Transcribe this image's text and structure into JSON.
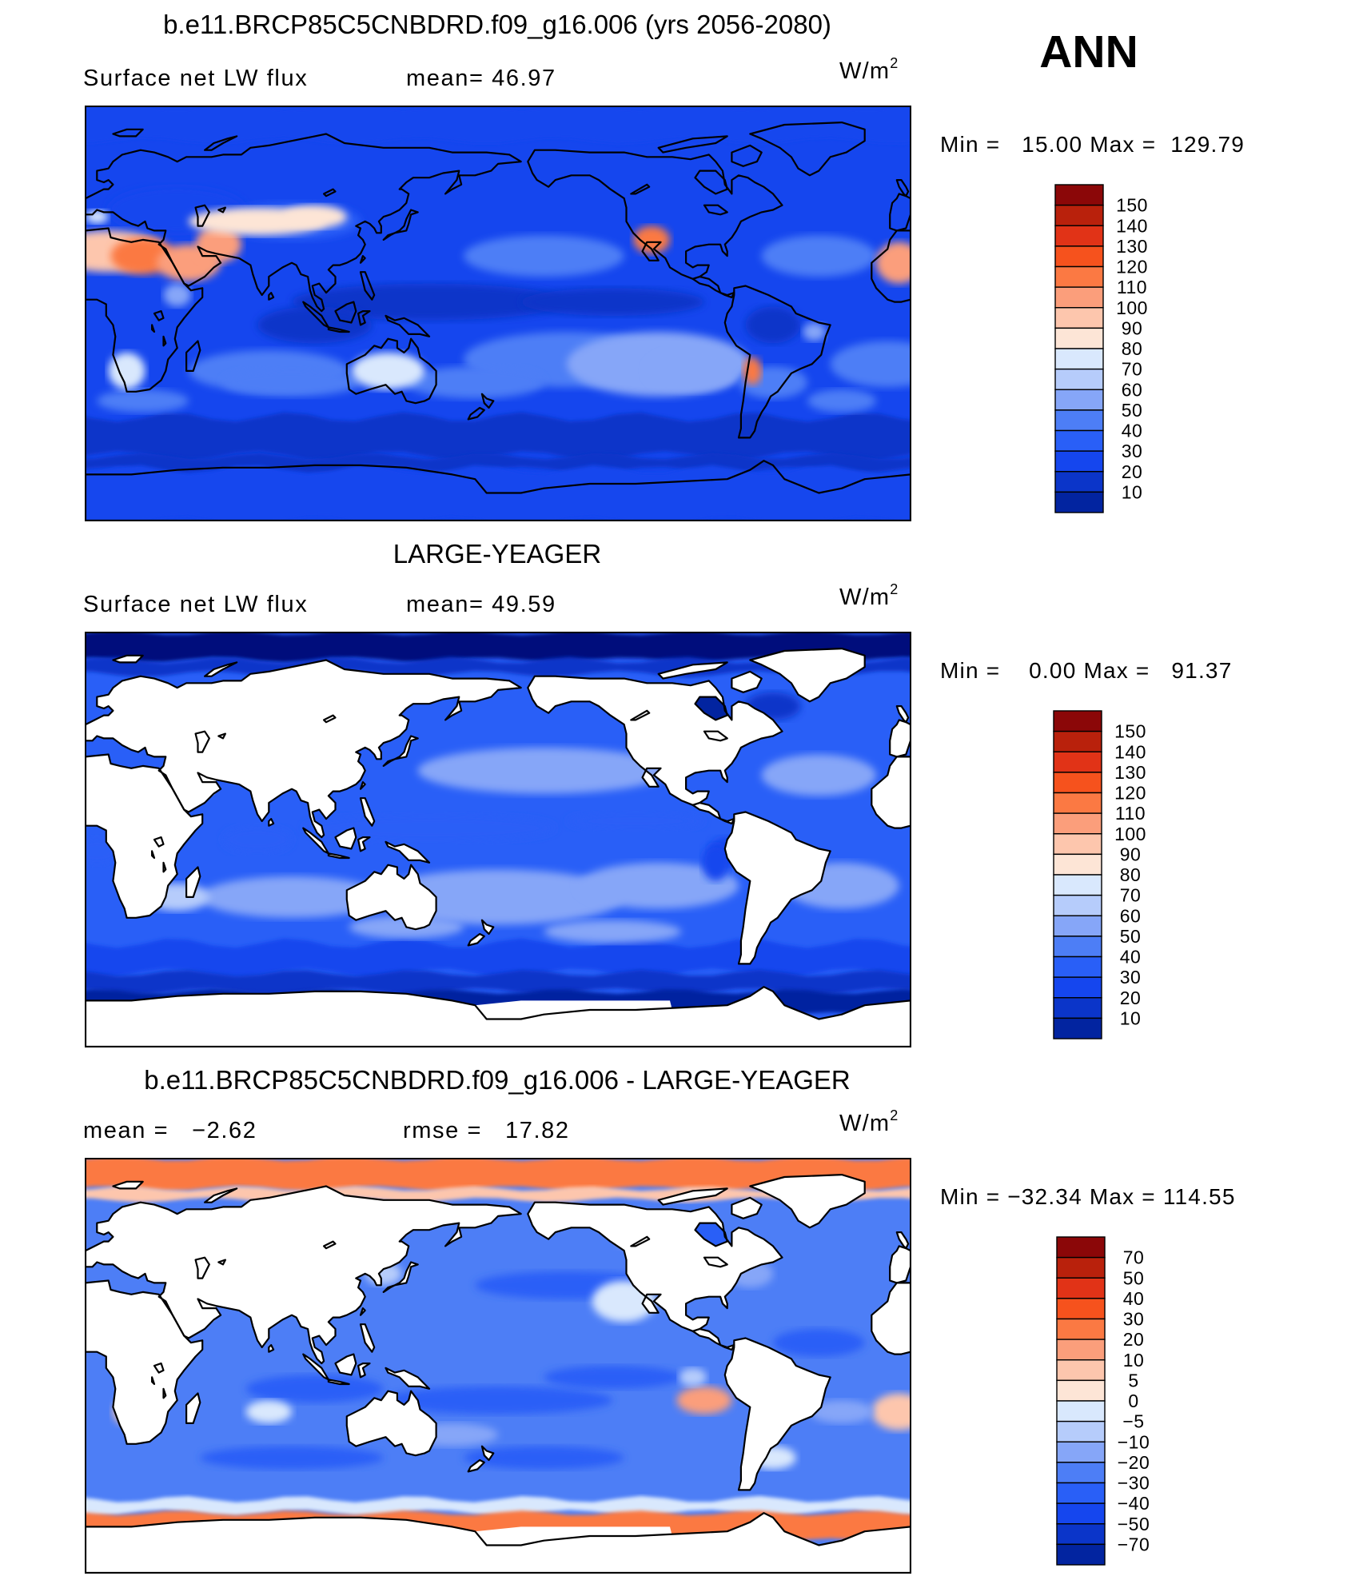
{
  "season": "ANN",
  "colors": {
    "cool": [
      "#010a7b",
      "#0224a0",
      "#0b35c9",
      "#1546ee",
      "#295ff7",
      "#4d7ef6",
      "#86a6f8",
      "#b6ccfb",
      "#d9e8fd"
    ],
    "warm": [
      "#fde5d6",
      "#fdc6ad",
      "#fb9e7b",
      "#fb7943",
      "#f6521d",
      "#e13317",
      "#b9210c",
      "#8b0708"
    ],
    "diff_cool": [
      "#010a7b",
      "#0224a0",
      "#0b35c9",
      "#1546ee",
      "#295ff7",
      "#4d7ef6",
      "#86a6f8",
      "#b6ccfb",
      "#d9e8fd"
    ],
    "diff_warm": [
      "#fde5d6",
      "#fdc6ad",
      "#fb9e7b",
      "#fb7943",
      "#f6521d",
      "#e13317",
      "#b9210c",
      "#8b0708"
    ],
    "land": "#ffffff",
    "coastline": "#000000"
  },
  "panels": [
    {
      "title": "b.e11.BRCP85C5CNBDRD.f09_g16.006 (yrs 2056-2080)",
      "left_label": "Surface net LW flux",
      "center_label": "mean=  46.97",
      "units": "W/m",
      "units_exp": "2",
      "minmax": "Min =   15.00 Max =  129.79",
      "levels": [
        "150",
        "140",
        "130",
        "120",
        "110",
        "100",
        "90",
        "80",
        "70",
        "60",
        "50",
        "40",
        "30",
        "20",
        "10"
      ],
      "field": "model"
    },
    {
      "title": "LARGE-YEAGER",
      "left_label": "Surface net LW flux",
      "center_label": "mean=  49.59",
      "units": "W/m",
      "units_exp": "2",
      "minmax": "Min =    0.00 Max =   91.37",
      "levels": [
        "150",
        "140",
        "130",
        "120",
        "110",
        "100",
        "90",
        "80",
        "70",
        "60",
        "50",
        "40",
        "30",
        "20",
        "10"
      ],
      "field": "obs"
    },
    {
      "title": "b.e11.BRCP85C5CNBDRD.f09_g16.006 - LARGE-YEAGER",
      "left_label": "mean =   −2.62",
      "center_label": "rmse =   17.82",
      "units": "W/m",
      "units_exp": "2",
      "minmax": "Min = −32.34 Max = 114.55",
      "levels": [
        "70",
        "50",
        "40",
        "30",
        "20",
        "10",
        "5",
        "0",
        "−5",
        "−10",
        "−20",
        "−30",
        "−40",
        "−50",
        "−70"
      ],
      "field": "diff"
    }
  ],
  "chart_data": [
    {
      "type": "heatmap",
      "title": "b.e11.BRCP85C5CNBDRD.f09_g16.006 (yrs 2056-2080)",
      "variable": "Surface net LW flux",
      "units": "W/m2",
      "season": "ANN",
      "mean": 46.97,
      "min": 15.0,
      "max": 129.79,
      "contour_levels": [
        10,
        20,
        30,
        40,
        50,
        60,
        70,
        80,
        90,
        100,
        110,
        120,
        130,
        140,
        150
      ],
      "x": "longitude (Pacific-centred, 0 to 360)",
      "y": "latitude (-90 to 90)"
    },
    {
      "type": "heatmap",
      "title": "LARGE-YEAGER",
      "variable": "Surface net LW flux",
      "units": "W/m2",
      "season": "ANN",
      "mean": 49.59,
      "min": 0.0,
      "max": 91.37,
      "contour_levels": [
        10,
        20,
        30,
        40,
        50,
        60,
        70,
        80,
        90,
        100,
        110,
        120,
        130,
        140,
        150
      ],
      "x": "longitude (Pacific-centred, 0 to 360)",
      "y": "latitude (-90 to 90)"
    },
    {
      "type": "heatmap",
      "title": "b.e11.BRCP85C5CNBDRD.f09_g16.006 - LARGE-YEAGER",
      "variable": "Surface net LW flux difference",
      "units": "W/m2",
      "season": "ANN",
      "mean": -2.62,
      "rmse": 17.82,
      "min": -32.34,
      "max": 114.55,
      "contour_levels": [
        -70,
        -50,
        -40,
        -30,
        -20,
        -10,
        -5,
        0,
        5,
        10,
        20,
        30,
        40,
        50,
        70
      ],
      "x": "longitude (Pacific-centred, 0 to 360)",
      "y": "latitude (-90 to 90)"
    }
  ]
}
